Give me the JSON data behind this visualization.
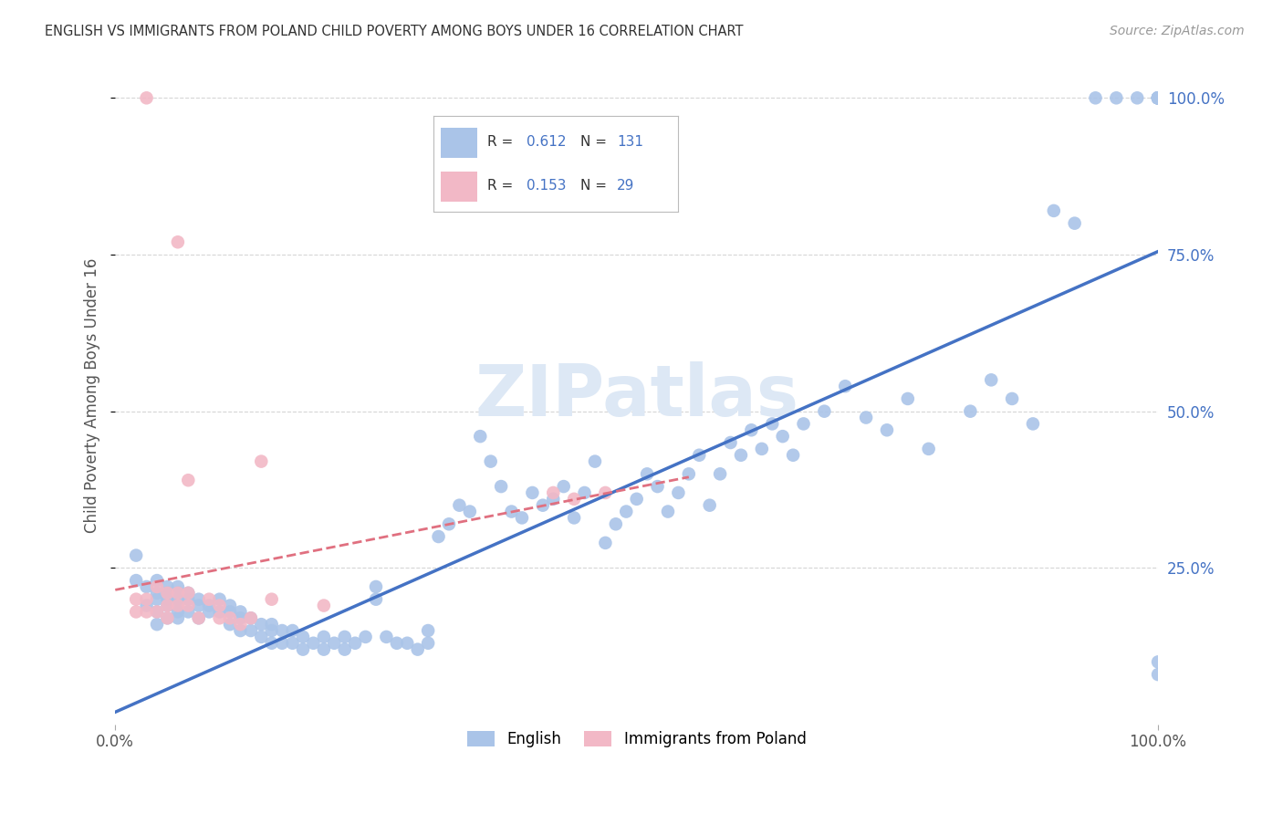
{
  "title": "ENGLISH VS IMMIGRANTS FROM POLAND CHILD POVERTY AMONG BOYS UNDER 16 CORRELATION CHART",
  "source": "Source: ZipAtlas.com",
  "ylabel": "Child Poverty Among Boys Under 16",
  "xlim": [
    0.0,
    1.0
  ],
  "ylim": [
    0.0,
    1.05
  ],
  "ytick_labels": [
    "25.0%",
    "50.0%",
    "75.0%",
    "100.0%"
  ],
  "ytick_positions": [
    0.25,
    0.5,
    0.75,
    1.0
  ],
  "english_R": 0.612,
  "english_N": 131,
  "poland_R": 0.153,
  "poland_N": 29,
  "english_color": "#aac4e8",
  "poland_color": "#f2b8c6",
  "english_line_color": "#4472c4",
  "poland_line_color": "#e07080",
  "tick_color": "#4472c4",
  "background_color": "#ffffff",
  "watermark_color": "#dde8f5",
  "english_x": [
    0.02,
    0.02,
    0.03,
    0.03,
    0.04,
    0.04,
    0.04,
    0.04,
    0.04,
    0.05,
    0.05,
    0.05,
    0.05,
    0.05,
    0.06,
    0.06,
    0.06,
    0.06,
    0.06,
    0.06,
    0.07,
    0.07,
    0.07,
    0.08,
    0.08,
    0.08,
    0.09,
    0.09,
    0.1,
    0.1,
    0.11,
    0.11,
    0.11,
    0.12,
    0.12,
    0.12,
    0.13,
    0.13,
    0.14,
    0.14,
    0.15,
    0.15,
    0.15,
    0.16,
    0.16,
    0.17,
    0.17,
    0.18,
    0.18,
    0.19,
    0.2,
    0.2,
    0.21,
    0.22,
    0.22,
    0.23,
    0.24,
    0.25,
    0.25,
    0.26,
    0.27,
    0.28,
    0.29,
    0.3,
    0.3,
    0.31,
    0.32,
    0.33,
    0.34,
    0.35,
    0.36,
    0.37,
    0.38,
    0.39,
    0.4,
    0.41,
    0.42,
    0.43,
    0.44,
    0.45,
    0.46,
    0.47,
    0.48,
    0.49,
    0.5,
    0.51,
    0.52,
    0.53,
    0.54,
    0.55,
    0.56,
    0.57,
    0.58,
    0.59,
    0.6,
    0.61,
    0.62,
    0.63,
    0.64,
    0.65,
    0.66,
    0.68,
    0.7,
    0.72,
    0.74,
    0.76,
    0.78,
    0.82,
    0.84,
    0.86,
    0.88,
    0.9,
    0.92,
    0.94,
    0.96,
    0.98,
    1.0,
    1.0,
    1.0,
    1.0,
    1.0,
    1.0,
    1.0,
    1.0,
    1.0,
    1.0,
    1.0,
    1.0,
    1.0,
    1.0,
    1.0
  ],
  "english_y": [
    0.27,
    0.23,
    0.22,
    0.19,
    0.21,
    0.23,
    0.2,
    0.18,
    0.16,
    0.22,
    0.2,
    0.21,
    0.19,
    0.17,
    0.22,
    0.21,
    0.2,
    0.19,
    0.18,
    0.17,
    0.21,
    0.2,
    0.18,
    0.2,
    0.19,
    0.17,
    0.19,
    0.18,
    0.2,
    0.18,
    0.19,
    0.18,
    0.16,
    0.18,
    0.17,
    0.15,
    0.17,
    0.15,
    0.16,
    0.14,
    0.16,
    0.15,
    0.13,
    0.15,
    0.13,
    0.15,
    0.13,
    0.14,
    0.12,
    0.13,
    0.14,
    0.12,
    0.13,
    0.14,
    0.12,
    0.13,
    0.14,
    0.22,
    0.2,
    0.14,
    0.13,
    0.13,
    0.12,
    0.15,
    0.13,
    0.3,
    0.32,
    0.35,
    0.34,
    0.46,
    0.42,
    0.38,
    0.34,
    0.33,
    0.37,
    0.35,
    0.36,
    0.38,
    0.33,
    0.37,
    0.42,
    0.29,
    0.32,
    0.34,
    0.36,
    0.4,
    0.38,
    0.34,
    0.37,
    0.4,
    0.43,
    0.35,
    0.4,
    0.45,
    0.43,
    0.47,
    0.44,
    0.48,
    0.46,
    0.43,
    0.48,
    0.5,
    0.54,
    0.49,
    0.47,
    0.52,
    0.44,
    0.5,
    0.55,
    0.52,
    0.48,
    0.82,
    0.8,
    1.0,
    1.0,
    1.0,
    1.0,
    1.0,
    1.0,
    1.0,
    1.0,
    1.0,
    1.0,
    1.0,
    1.0,
    1.0,
    1.0,
    1.0,
    1.0,
    0.1,
    0.08
  ],
  "poland_x": [
    0.02,
    0.02,
    0.03,
    0.03,
    0.04,
    0.04,
    0.05,
    0.05,
    0.05,
    0.06,
    0.06,
    0.07,
    0.07,
    0.08,
    0.09,
    0.1,
    0.1,
    0.11,
    0.12,
    0.13,
    0.14,
    0.15,
    0.2,
    0.42,
    0.44,
    0.47,
    0.03,
    0.06,
    0.07
  ],
  "poland_y": [
    0.2,
    0.18,
    0.2,
    0.18,
    0.22,
    0.18,
    0.21,
    0.19,
    0.17,
    0.21,
    0.19,
    0.21,
    0.19,
    0.17,
    0.2,
    0.19,
    0.17,
    0.17,
    0.16,
    0.17,
    0.42,
    0.2,
    0.19,
    0.37,
    0.36,
    0.37,
    1.0,
    0.77,
    0.39
  ],
  "eng_line_x": [
    0.0,
    1.0
  ],
  "eng_line_y": [
    0.02,
    0.755
  ],
  "pol_line_x": [
    0.0,
    0.55
  ],
  "pol_line_y": [
    0.215,
    0.395
  ]
}
